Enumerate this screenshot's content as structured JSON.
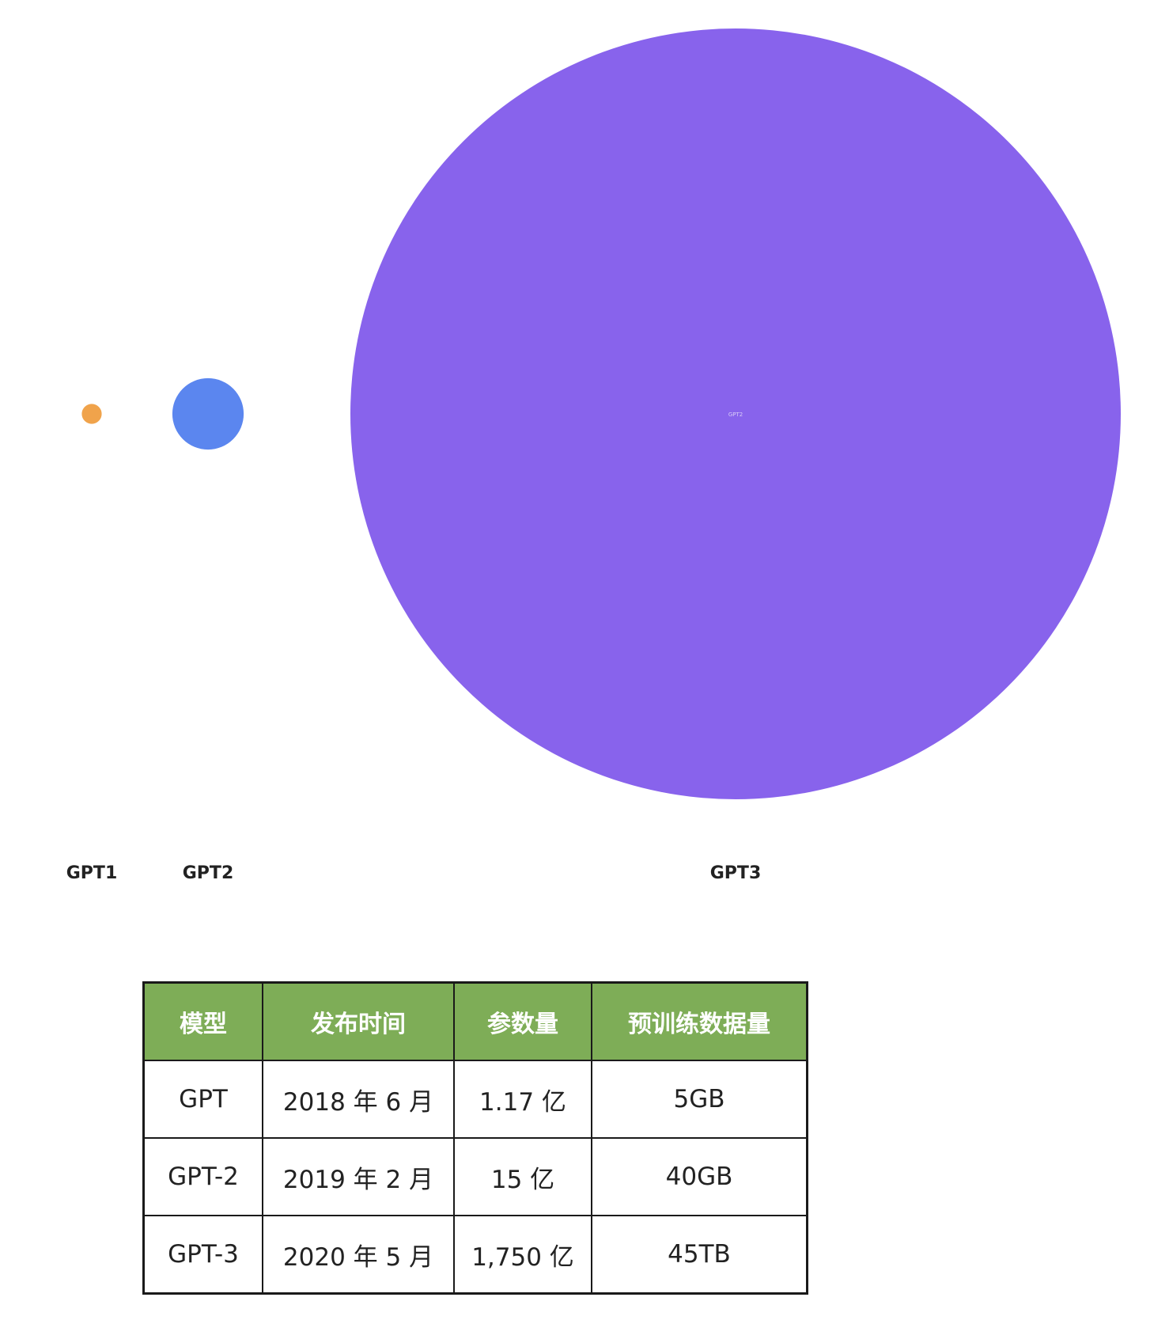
{
  "chart_data": {
    "type": "bubble",
    "inner_label": "GPT2",
    "series": [
      {
        "name": "GPT1",
        "params_yi": 1.17,
        "color": "#f0a34b"
      },
      {
        "name": "GPT2",
        "params_yi": 15,
        "color": "#5b86ef"
      },
      {
        "name": "GPT3",
        "params_yi": 1750,
        "color": "#8863ec"
      }
    ]
  },
  "table": {
    "headers": [
      "模型",
      "发布时间",
      "参数量",
      "预训练数据量"
    ],
    "rows": [
      [
        "GPT",
        "2018 年 6 月",
        "1.17 亿",
        "5GB"
      ],
      [
        "GPT-2",
        "2019 年 2 月",
        "15 亿",
        "40GB"
      ],
      [
        "GPT-3",
        "2020 年 5 月",
        "1,750 亿",
        "45TB"
      ]
    ]
  }
}
